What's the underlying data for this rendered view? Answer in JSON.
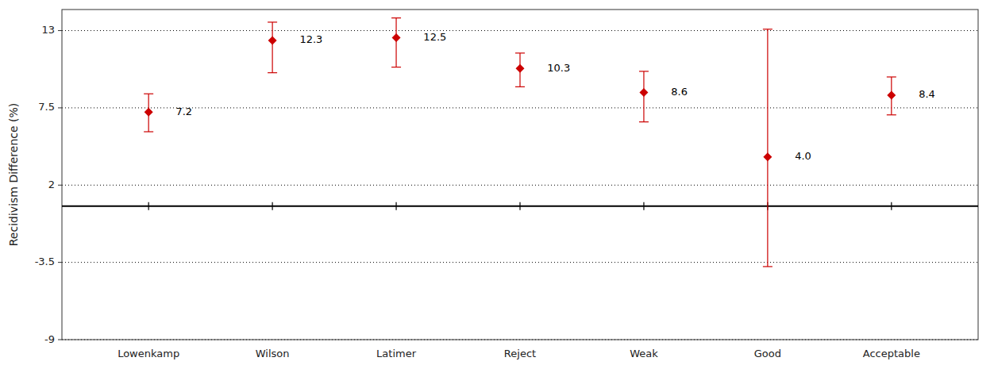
{
  "chart_data": {
    "type": "errorbar",
    "categories": [
      "Lowenkamp",
      "Wilson",
      "Latimer",
      "Reject",
      "Weak",
      "Good",
      "Acceptable"
    ],
    "values": [
      7.2,
      12.3,
      12.5,
      10.3,
      8.6,
      4.0,
      8.4
    ],
    "value_labels": [
      "7.2",
      "12.3",
      "12.5",
      "10.3",
      "8.6",
      "4.0",
      "8.4"
    ],
    "ci_lower": [
      5.8,
      10.0,
      10.4,
      9.0,
      6.5,
      -3.8,
      7.0
    ],
    "ci_upper": [
      8.5,
      13.6,
      13.9,
      11.4,
      10.1,
      13.1,
      9.7
    ],
    "reference_line": 0.5,
    "ylabel": "Recidivism Difference (%)",
    "ylim": [
      -9,
      14.5
    ],
    "yticks": [
      13,
      7.5,
      2,
      -3.5,
      -9
    ],
    "grid": true,
    "data_labels": true,
    "color": "#cc0000",
    "marker": "diamond"
  }
}
